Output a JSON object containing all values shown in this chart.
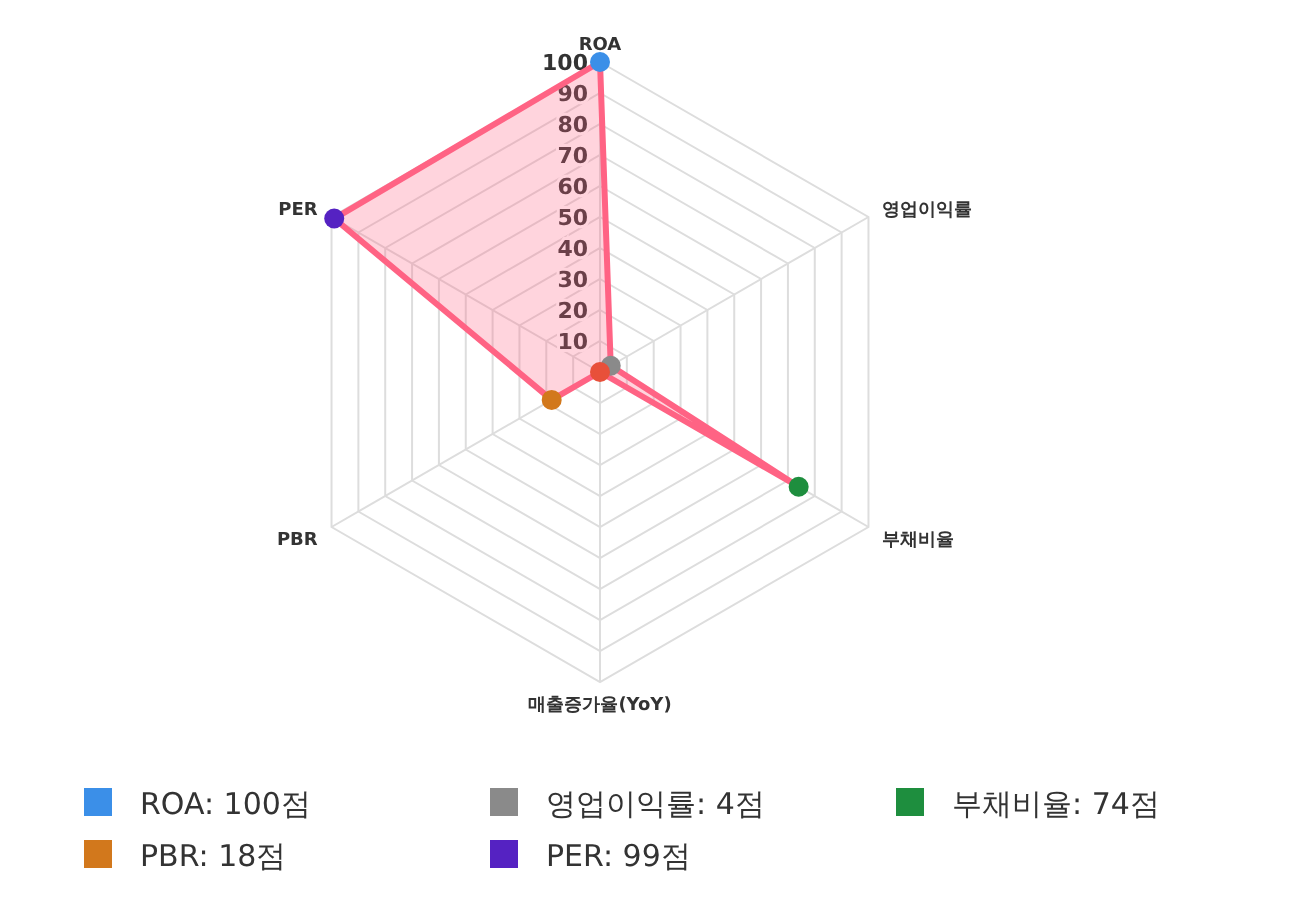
{
  "chart_data": {
    "type": "radar",
    "categories": [
      "ROA",
      "영업이익률",
      "부채비율",
      "매출증가율(YoY)",
      "PBR",
      "PER"
    ],
    "series": [
      {
        "color": "#ff6384",
        "values": [
          100,
          4,
          74,
          0,
          18,
          99
        ],
        "colors": [
          "#3b8fe8",
          "#8a8a8a",
          "#1e8e3e",
          "#e8503a",
          "#d2781c",
          "#5522c2"
        ]
      }
    ],
    "annotations": [
      {
        "text": "ROA: 100점",
        "x": "ROA"
      },
      {
        "text": "영업이익률: 4점",
        "x": "영업이익률"
      },
      {
        "text": "부채비율: 74점",
        "x": "부채비율"
      },
      {
        "text": "PBR: 18점",
        "x": "PBR"
      },
      {
        "text": "PER: 99점",
        "x": "PER"
      }
    ],
    "ylim": [
      0,
      100
    ],
    "yticks": [
      10,
      20,
      30,
      40,
      50,
      60,
      70,
      80,
      90,
      100
    ],
    "grid": true,
    "marker": "circle"
  }
}
